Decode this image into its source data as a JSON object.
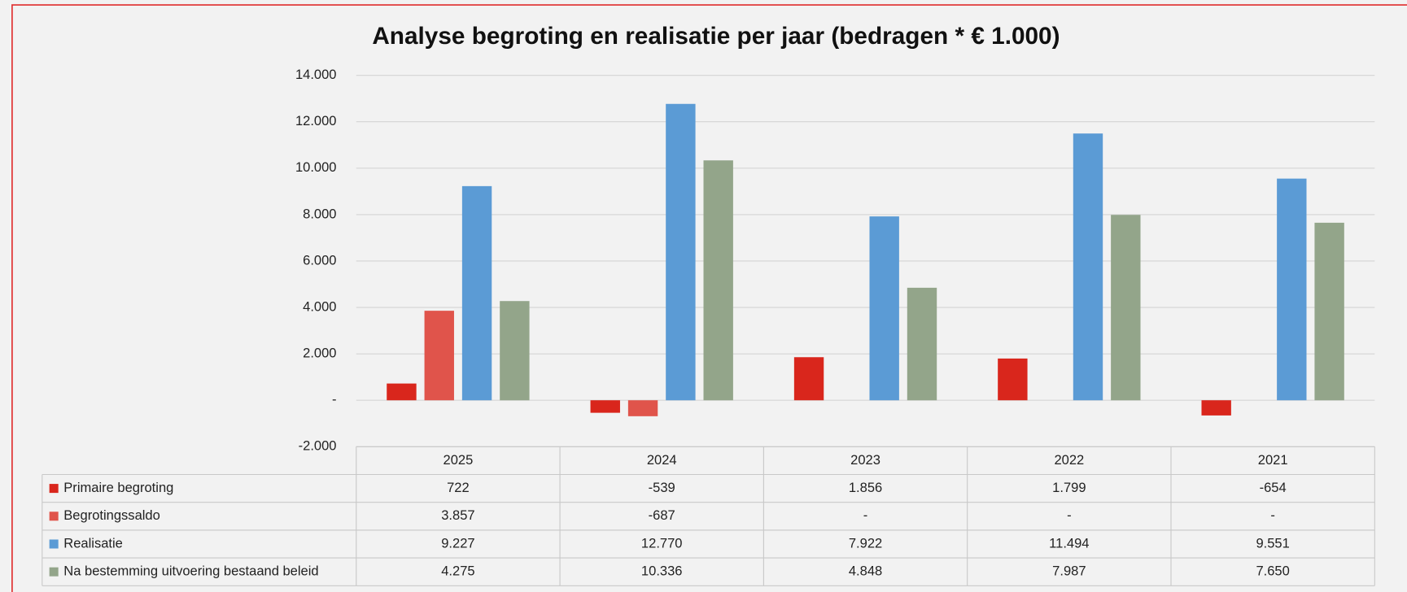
{
  "chart_data": {
    "type": "bar",
    "title": "Analyse begroting en realisatie per jaar (bedragen * € 1.000)",
    "categories": [
      "2025",
      "2024",
      "2023",
      "2022",
      "2021"
    ],
    "series": [
      {
        "name": "Primaire begroting",
        "color": "#d9261c",
        "values": [
          722,
          -539,
          1856,
          1799,
          -654
        ],
        "value_labels": [
          "722",
          "-539",
          "1.856",
          "1.799",
          "-654"
        ]
      },
      {
        "name": "Begrotingssaldo",
        "color": "#e0544b",
        "values": [
          3857,
          -687,
          0,
          0,
          0
        ],
        "value_labels": [
          "3.857",
          "-687",
          "-",
          "-",
          "-"
        ]
      },
      {
        "name": "Realisatie",
        "color": "#5b9bd5",
        "values": [
          9227,
          12770,
          7922,
          11494,
          9551
        ],
        "value_labels": [
          "9.227",
          "12.770",
          "7.922",
          "11.494",
          "9.551"
        ]
      },
      {
        "name": "Na bestemming uitvoering bestaand beleid",
        "color": "#93a58a",
        "values": [
          4275,
          10336,
          4848,
          7987,
          7650
        ],
        "value_labels": [
          "4.275",
          "10.336",
          "4.848",
          "7.987",
          "7.650"
        ]
      }
    ],
    "ylim": [
      -2000,
      14000
    ],
    "yticks": [
      {
        "value": -2000,
        "label": "-2.000"
      },
      {
        "value": 0,
        "label": "-"
      },
      {
        "value": 2000,
        "label": "2.000"
      },
      {
        "value": 4000,
        "label": "4.000"
      },
      {
        "value": 6000,
        "label": "6.000"
      },
      {
        "value": 8000,
        "label": "8.000"
      },
      {
        "value": 10000,
        "label": "10.000"
      },
      {
        "value": 12000,
        "label": "12.000"
      },
      {
        "value": 14000,
        "label": "14.000"
      }
    ],
    "grid": true
  }
}
